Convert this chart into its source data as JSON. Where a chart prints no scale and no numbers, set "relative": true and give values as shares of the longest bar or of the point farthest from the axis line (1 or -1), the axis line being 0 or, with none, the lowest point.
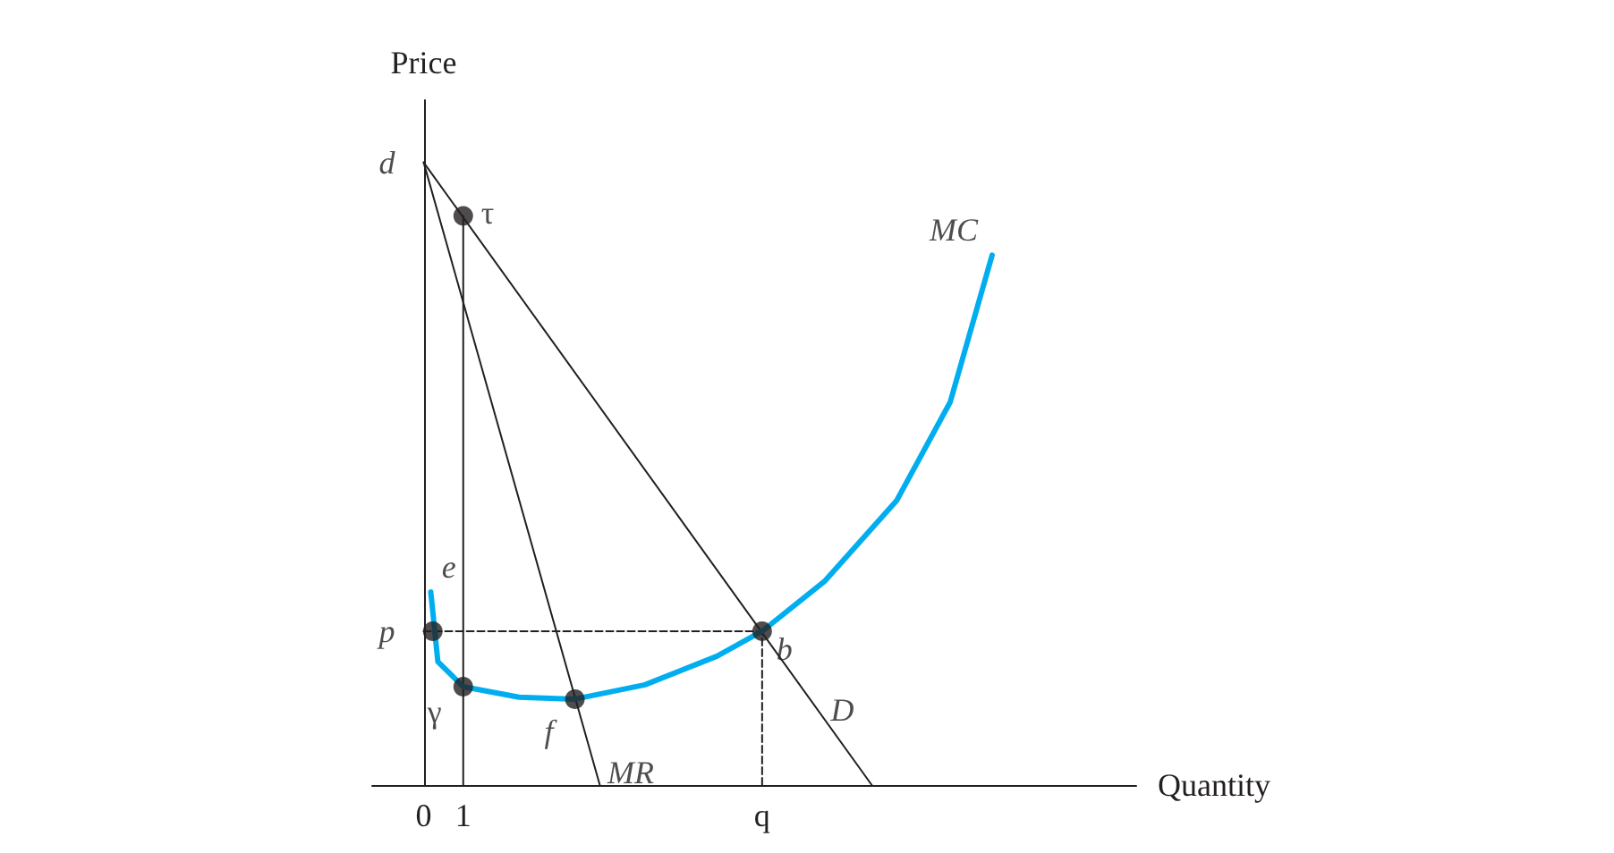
{
  "chart_data": {
    "type": "line",
    "relative": true,
    "xlabel": "Quantity",
    "ylabel": "Price",
    "xlim": [
      -1.3,
      18
    ],
    "xticks": [
      0,
      1,
      {
        "value": 8.55,
        "label": "q"
      }
    ],
    "tick_labels": "x",
    "grid": false,
    "marker": "none",
    "series": [
      {
        "color": "#231f20",
        "x": [
          0,
          11.32
        ],
        "values": [
          1,
          0
        ]
      },
      {
        "color": "#231f20",
        "x": [
          0,
          4.45
        ],
        "values": [
          1,
          0
        ]
      },
      {
        "color": "#231f20",
        "x": [
          1,
          1
        ],
        "values": [
          0,
          0.914
        ]
      },
      {
        "color": "#231f20",
        "line_style": "dashed",
        "x": [
          0,
          8.55
        ],
        "values": [
          0.247,
          0.247
        ]
      },
      {
        "color": "#231f20",
        "line_style": "dashed",
        "x": [
          8.55,
          8.55
        ],
        "values": [
          0,
          0.247
        ]
      },
      {
        "color": "#00aeef",
        "x": [
          0.18,
          0.36,
          1,
          2.41,
          3.82,
          5.59,
          7.41,
          8.55,
          10.14,
          11.95,
          13.3,
          14.36
        ],
        "values": [
          0.31,
          0.198,
          0.158,
          0.141,
          0.138,
          0.161,
          0.207,
          0.247,
          0.328,
          0.457,
          0.615,
          0.851
        ]
      },
      {
        "type": "scatter",
        "marker": "circle",
        "color": "#231f20",
        "x": [
          1,
          0.23,
          8.55,
          1,
          3.82
        ],
        "values": [
          0.914,
          0.247,
          0.247,
          0.158,
          0.138
        ]
      }
    ],
    "annotations": [
      {
        "text": "d",
        "x": 0,
        "y": 1
      },
      {
        "text": "τ",
        "x": 1,
        "y": 0.914
      },
      {
        "text": "e",
        "x": 0.23,
        "y": 0.31
      },
      {
        "text": "p",
        "x": 0,
        "y": 0.247
      },
      {
        "text": "b",
        "x": 8.55,
        "y": 0.247
      },
      {
        "text": "γ",
        "x": 1,
        "y": 0.158
      },
      {
        "text": "f",
        "x": 3.82,
        "y": 0.138
      },
      {
        "text": "MR",
        "x": 4.1,
        "y": 0.078
      },
      {
        "text": "D",
        "x": 9.83,
        "y": 0.132
      },
      {
        "text": "MC",
        "x": 14.36,
        "y": 0.851
      }
    ]
  }
}
